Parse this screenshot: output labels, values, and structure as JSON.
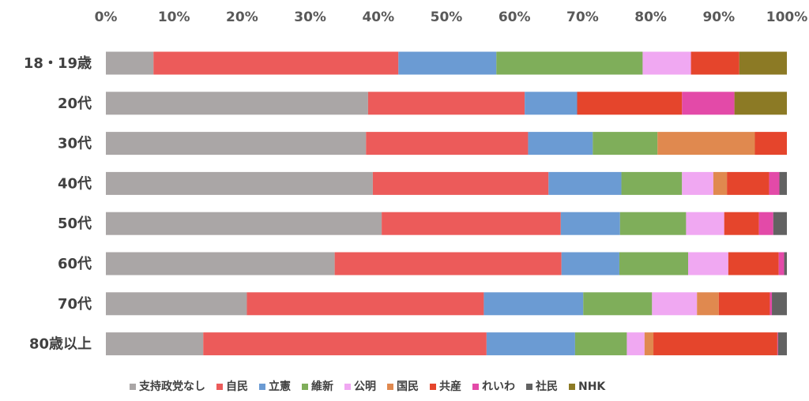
{
  "chart_data": {
    "type": "bar",
    "orientation": "horizontal",
    "stacked": "percent",
    "title": "",
    "xlabel": "",
    "ylabel": "",
    "xlim": [
      0,
      100
    ],
    "grid": false,
    "legend_position": "bottom",
    "x_ticks": [
      "0%",
      "10%",
      "20%",
      "30%",
      "40%",
      "50%",
      "60%",
      "70%",
      "80%",
      "90%",
      "100%"
    ],
    "categories": [
      "18・19歳",
      "20代",
      "30代",
      "40代",
      "50代",
      "60代",
      "70代",
      "80歳以上"
    ],
    "series": [
      {
        "name": "支持政党なし",
        "color": "#aaa6a6",
        "values": [
          7,
          38.5,
          38.2,
          39.2,
          40.5,
          33.6,
          20.7,
          14.3
        ]
      },
      {
        "name": "自民",
        "color": "#ec5b5a",
        "values": [
          36,
          23,
          23.8,
          25.8,
          26.3,
          33.3,
          34.8,
          41.6
        ]
      },
      {
        "name": "立憲",
        "color": "#6b9bd3",
        "values": [
          14.4,
          7.7,
          9.5,
          10.7,
          8.7,
          8.5,
          14.6,
          13
        ]
      },
      {
        "name": "維新",
        "color": "#7fae5a",
        "values": [
          21.5,
          0,
          9.5,
          8.9,
          9.7,
          10.1,
          10.1,
          7.6
        ]
      },
      {
        "name": "公明",
        "color": "#f0a8f2",
        "values": [
          7.1,
          0,
          0,
          4.6,
          5.6,
          5.9,
          6.6,
          2.6
        ]
      },
      {
        "name": "国民",
        "color": "#e0894f",
        "values": [
          0,
          0,
          14.3,
          2,
          0,
          0,
          3.2,
          1.3
        ]
      },
      {
        "name": "共産",
        "color": "#e5452c",
        "values": [
          7.1,
          15.4,
          4.7,
          6.2,
          5.1,
          7.4,
          7.5,
          18.2
        ]
      },
      {
        "name": "れいわ",
        "color": "#e34aa8",
        "values": [
          0,
          7.7,
          0,
          1.5,
          2.1,
          0.8,
          0.3,
          0.1
        ]
      },
      {
        "name": "社民",
        "color": "#626262",
        "values": [
          0,
          0,
          0,
          1.1,
          2,
          0.4,
          2.2,
          1.3
        ]
      },
      {
        "name": "NHK",
        "color": "#8c7a25",
        "values": [
          7,
          7.7,
          0,
          0,
          0,
          0,
          0,
          0
        ]
      }
    ]
  }
}
